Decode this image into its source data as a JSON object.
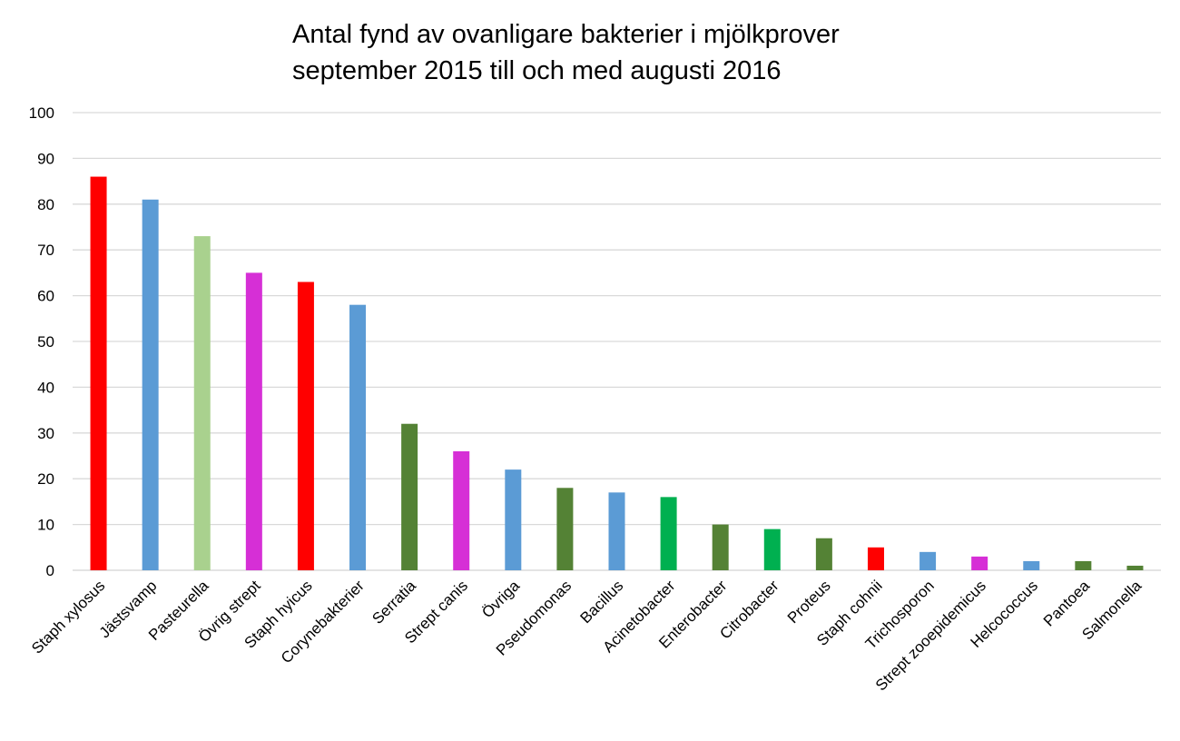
{
  "chart_data": {
    "type": "bar",
    "title": [
      "Antal fynd av ovanligare bakterier i mjölkprover",
      "september 2015 till och med augusti 2016"
    ],
    "xlabel": "",
    "ylabel": "",
    "ylim": [
      0,
      100
    ],
    "yticks": [
      "0",
      "10",
      "20",
      "30",
      "40",
      "50",
      "60",
      "70",
      "80",
      "90",
      "100"
    ],
    "grid": true,
    "legend": "none",
    "categories": [
      "Staph xylosus",
      "Jästsvamp",
      "Pasteurella",
      "Övrig strept",
      "Staph hyicus",
      "Corynebakterier",
      "Serratia",
      "Strept canis",
      "Övriga",
      "Pseudomonas",
      "Bacillus",
      "Acinetobacter",
      "Enterobacter",
      "Citrobacter",
      "Proteus",
      "Staph cohnii",
      "Trichosporon",
      "Strept zooepidemicus",
      "Helcococcus",
      "Pantoea",
      "Salmonella"
    ],
    "values": [
      86,
      81,
      73,
      65,
      63,
      58,
      32,
      26,
      22,
      18,
      17,
      16,
      10,
      9,
      7,
      5,
      4,
      3,
      2,
      2,
      1
    ],
    "colors": [
      "#ff0000",
      "#5b9bd5",
      "#a9d18e",
      "#d62fd6",
      "#ff0000",
      "#5b9bd5",
      "#548235",
      "#d62fd6",
      "#5b9bd5",
      "#548235",
      "#5b9bd5",
      "#00b050",
      "#548235",
      "#00b050",
      "#548235",
      "#ff0000",
      "#5b9bd5",
      "#d62fd6",
      "#5b9bd5",
      "#548235",
      "#548235"
    ],
    "gridline_color": "#d9d9d9"
  }
}
